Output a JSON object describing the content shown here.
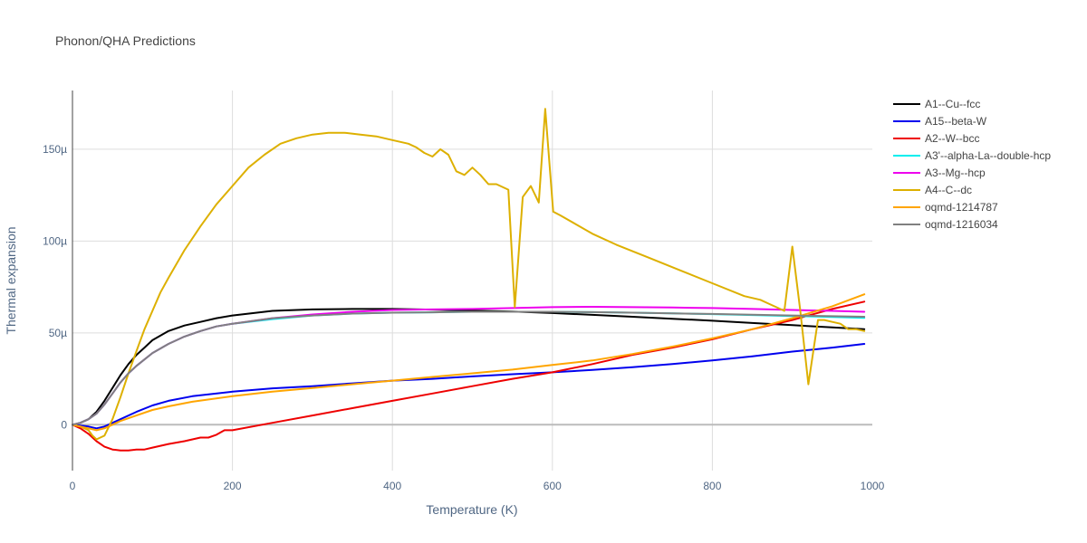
{
  "chart_data": {
    "type": "line",
    "title": "Phonon/QHA Predictions",
    "xlabel": "Temperature (K)",
    "ylabel": "Thermal expansion",
    "xlim": [
      0,
      1000
    ],
    "ylim": [
      -25,
      182
    ],
    "y_unit_suffix": "µ",
    "x_ticks": [
      0,
      200,
      400,
      600,
      800,
      1000
    ],
    "x_tick_labels": [
      "0",
      "200",
      "400",
      "600",
      "800",
      "1000"
    ],
    "y_ticks": [
      0,
      50,
      100,
      150
    ],
    "y_tick_labels": [
      "0",
      "50µ",
      "100µ",
      "150µ"
    ],
    "grid": true,
    "legend_position": "right",
    "series": [
      {
        "name": "A1--Cu--fcc",
        "color": "#000000",
        "x": [
          0,
          10,
          20,
          30,
          40,
          50,
          60,
          70,
          80,
          90,
          100,
          120,
          140,
          160,
          180,
          200,
          250,
          300,
          350,
          400,
          450,
          500,
          550,
          600,
          650,
          700,
          750,
          800,
          850,
          900,
          950,
          990
        ],
        "y": [
          0,
          1,
          3,
          7,
          13,
          20,
          27,
          33,
          38,
          42,
          46,
          51,
          54,
          56,
          58,
          59.5,
          62,
          62.8,
          63,
          63,
          62.7,
          62.2,
          61.6,
          60.8,
          59.8,
          58.8,
          57.7,
          56.6,
          55.4,
          54.2,
          53,
          52
        ]
      },
      {
        "name": "A15--beta-W",
        "color": "#0000ee",
        "x": [
          0,
          20,
          30,
          40,
          50,
          60,
          80,
          100,
          120,
          150,
          200,
          250,
          300,
          350,
          400,
          450,
          500,
          550,
          600,
          650,
          700,
          750,
          800,
          850,
          900,
          950,
          990
        ],
        "y": [
          0,
          -1,
          -2,
          -1,
          1,
          3,
          7,
          10.5,
          13,
          15.5,
          18,
          19.8,
          21,
          22.5,
          24,
          25,
          26.3,
          27.5,
          28.5,
          29.8,
          31.3,
          33,
          35,
          37.2,
          39.8,
          42,
          44
        ]
      },
      {
        "name": "A2--W--bcc",
        "color": "#ee0000",
        "x": [
          0,
          10,
          20,
          30,
          40,
          50,
          60,
          70,
          80,
          90,
          100,
          120,
          140,
          160,
          170,
          180,
          190,
          200,
          250,
          300,
          350,
          400,
          450,
          500,
          550,
          600,
          650,
          700,
          750,
          800,
          850,
          900,
          950,
          990
        ],
        "y": [
          0,
          -2,
          -5,
          -9,
          -12,
          -13.5,
          -14,
          -14,
          -13.5,
          -13.5,
          -12.5,
          -10.5,
          -9,
          -7,
          -7,
          -5.5,
          -3,
          -3,
          1,
          5,
          9,
          13,
          17,
          21,
          25,
          28.5,
          33,
          38,
          42,
          46.5,
          52,
          57,
          63,
          67
        ]
      },
      {
        "name": "A3'--alpha-La--double-hcp",
        "color": "#00eeee",
        "x": [
          0,
          10,
          20,
          30,
          40,
          50,
          60,
          70,
          80,
          100,
          120,
          140,
          160,
          180,
          200,
          250,
          300,
          350,
          400,
          450,
          500,
          550,
          600,
          650,
          700,
          750,
          800,
          850,
          900,
          950,
          990
        ],
        "y": [
          0,
          1,
          3,
          6,
          11,
          17,
          23,
          28,
          32,
          39,
          44,
          48,
          51,
          53.5,
          55,
          57.5,
          59.5,
          60.5,
          61,
          61.2,
          61.5,
          61.5,
          61.5,
          61.3,
          61,
          60.6,
          60.2,
          59.7,
          59.2,
          58.7,
          58.2
        ]
      },
      {
        "name": "A3--Mg--hcp",
        "color": "#ee00ee",
        "x": [
          0,
          10,
          20,
          30,
          40,
          50,
          60,
          70,
          80,
          100,
          120,
          140,
          160,
          180,
          200,
          250,
          300,
          350,
          400,
          450,
          500,
          550,
          600,
          650,
          700,
          750,
          800,
          850,
          900,
          950,
          990
        ],
        "y": [
          0,
          1,
          3,
          6,
          11,
          17,
          23,
          28,
          32,
          39,
          44,
          48,
          51,
          53.5,
          55,
          58,
          60,
          61.5,
          62.5,
          62.8,
          63,
          63.5,
          64,
          64.2,
          64,
          63.8,
          63.5,
          63,
          62.5,
          62,
          61.5
        ]
      },
      {
        "name": "A4--C--dc",
        "color": "#ddb000",
        "x": [
          0,
          10,
          20,
          25,
          30,
          40,
          50,
          60,
          70,
          80,
          90,
          100,
          110,
          120,
          140,
          160,
          180,
          200,
          220,
          240,
          260,
          280,
          300,
          320,
          340,
          360,
          380,
          400,
          420,
          430,
          440,
          450,
          460,
          470,
          480,
          490,
          500,
          510,
          520,
          530,
          545,
          553,
          563,
          573,
          583,
          591,
          601,
          610,
          630,
          650,
          680,
          720,
          760,
          800,
          840,
          860,
          870,
          880,
          890,
          900,
          910,
          920,
          932,
          940,
          950,
          960,
          970,
          980,
          990
        ],
        "y": [
          0,
          -1,
          -3,
          -6,
          -8,
          -6,
          3,
          15,
          28,
          40,
          52,
          62,
          72,
          80,
          95,
          108,
          120,
          130,
          140,
          147,
          153,
          156,
          158,
          159,
          159,
          158,
          157,
          155,
          153,
          151,
          148,
          146,
          150,
          147,
          138,
          136,
          140,
          136,
          131,
          131,
          128,
          64,
          124,
          130,
          121,
          172,
          116,
          114,
          109,
          104,
          98,
          91,
          84,
          77,
          70,
          68,
          66,
          64,
          62,
          97,
          62,
          22,
          57,
          57,
          56,
          55,
          52,
          52,
          51
        ]
      },
      {
        "name": "oqmd-1214787",
        "color": "#ffa500",
        "x": [
          0,
          10,
          20,
          30,
          40,
          50,
          60,
          80,
          100,
          120,
          150,
          200,
          250,
          300,
          350,
          400,
          450,
          500,
          550,
          600,
          650,
          700,
          750,
          800,
          850,
          900,
          950,
          990
        ],
        "y": [
          0,
          -1,
          -2,
          -3,
          -2,
          0,
          2,
          5,
          8,
          10,
          12.5,
          15.5,
          18,
          20,
          22,
          24,
          26,
          28,
          30,
          32.5,
          35,
          38.5,
          42.5,
          47,
          52,
          58,
          64.5,
          71
        ]
      },
      {
        "name": "oqmd-1216034",
        "color": "#808080",
        "x": [
          0,
          10,
          20,
          30,
          40,
          50,
          60,
          70,
          80,
          100,
          120,
          140,
          160,
          180,
          200,
          250,
          300,
          350,
          400,
          450,
          500,
          550,
          600,
          650,
          700,
          750,
          800,
          850,
          900,
          950,
          990
        ],
        "y": [
          0,
          1,
          3,
          6,
          11,
          17,
          23,
          28,
          32,
          39,
          44,
          48,
          51,
          53.5,
          55,
          58,
          59.5,
          60.5,
          61,
          61.2,
          61.5,
          61.5,
          61.5,
          61.3,
          61,
          60.6,
          60.3,
          59.9,
          59.5,
          59.1,
          58.8
        ]
      }
    ]
  }
}
